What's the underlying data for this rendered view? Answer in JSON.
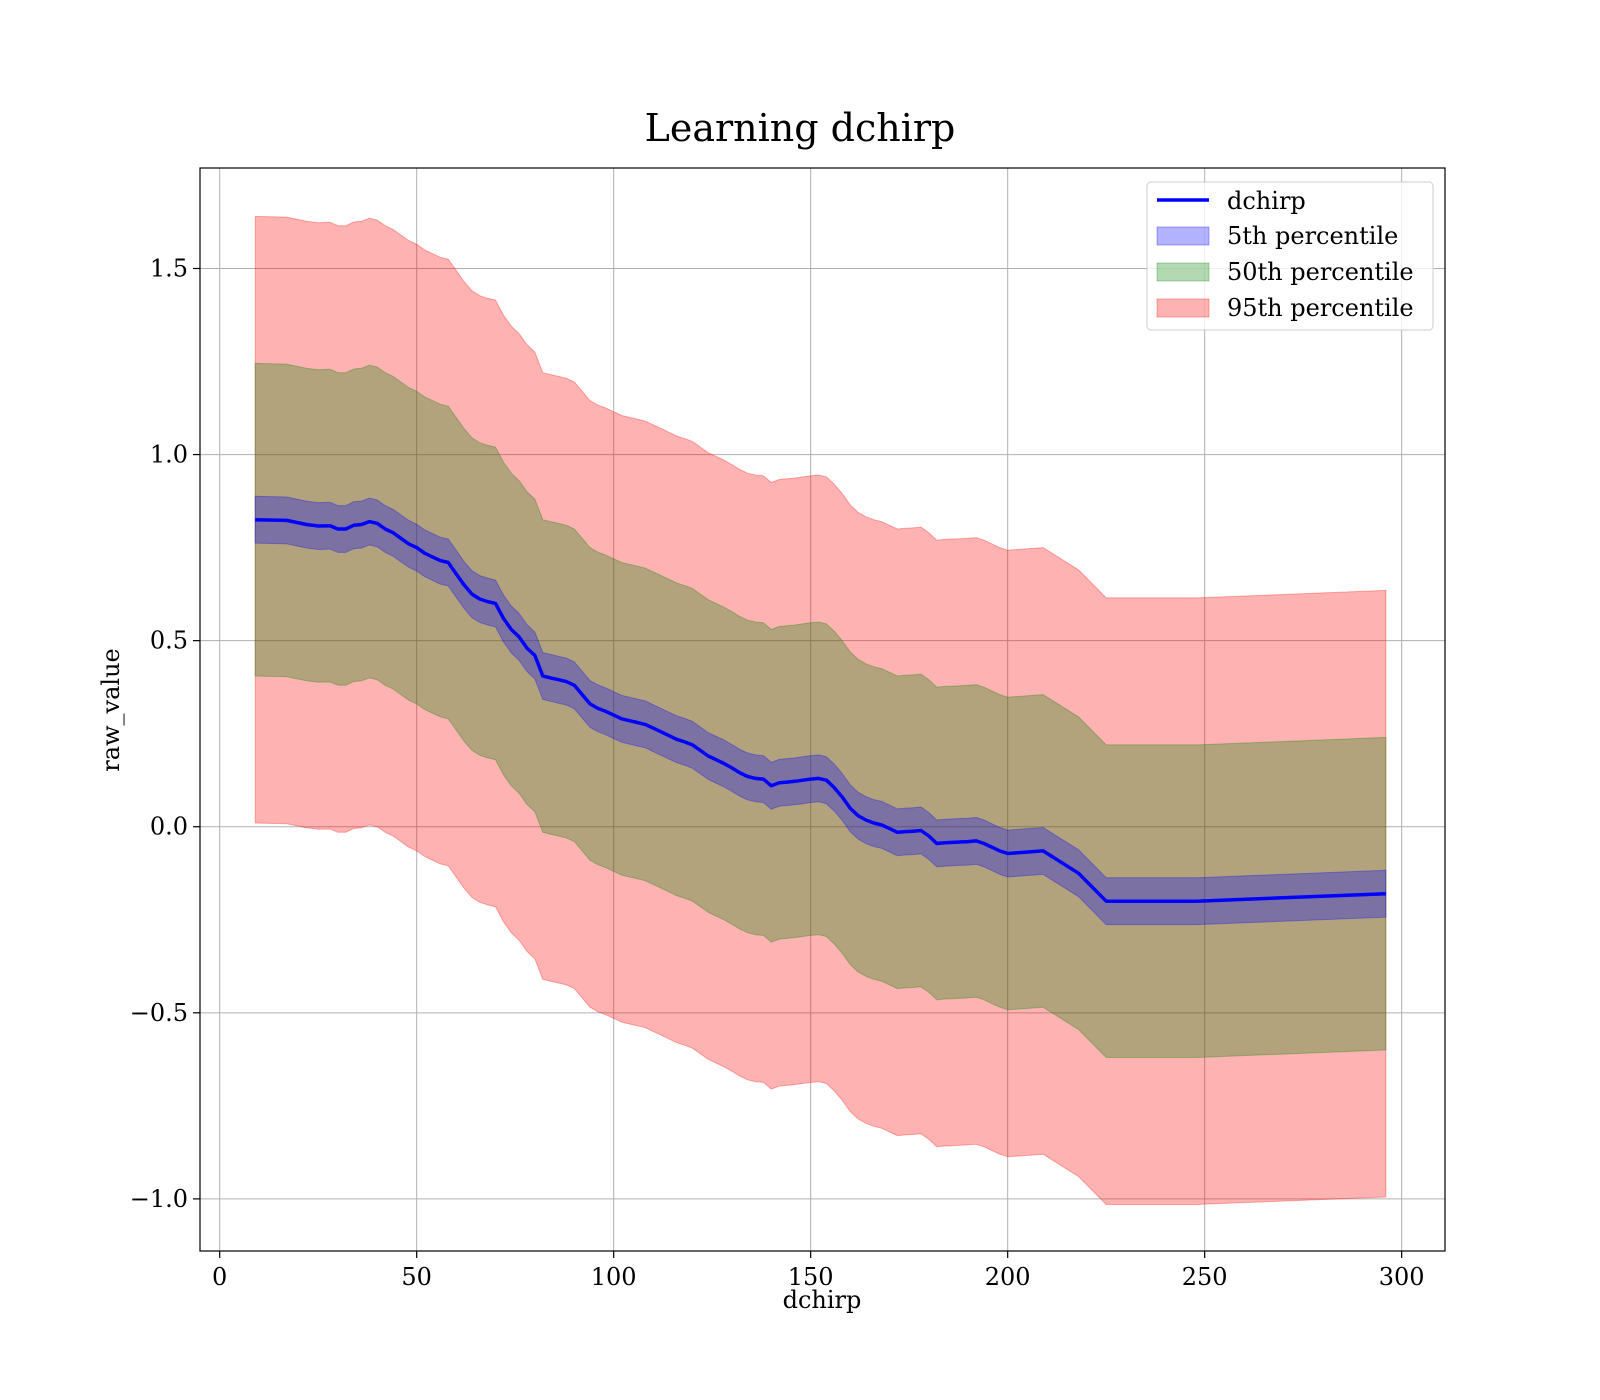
{
  "chart_data": {
    "type": "line",
    "title": "Learning dchirp",
    "xlabel": "dchirp",
    "ylabel": "raw_value",
    "xlim": [
      -5,
      311
    ],
    "ylim": [
      -1.14,
      1.77
    ],
    "grid": true,
    "legend_position": "top-right",
    "xticks": [
      0,
      50,
      100,
      150,
      200,
      250,
      300
    ],
    "xtick_labels": [
      "0",
      "50",
      "100",
      "150",
      "200",
      "250",
      "300"
    ],
    "yticks": [
      -1.0,
      -0.5,
      0.0,
      0.5,
      1.0,
      1.5
    ],
    "ytick_labels": [
      "−1.0",
      "−0.5",
      "0.0",
      "0.5",
      "1.0",
      "1.5"
    ],
    "x": [
      9,
      17,
      22,
      25,
      28,
      30,
      32,
      34,
      36,
      38,
      40,
      42,
      44,
      46,
      48,
      50,
      52,
      54,
      56,
      58,
      60,
      62,
      64,
      66,
      68,
      70,
      72,
      74,
      76,
      78,
      80,
      82,
      84,
      86,
      88,
      90,
      92,
      94,
      96,
      98,
      100,
      102,
      104,
      106,
      108,
      110,
      112,
      114,
      116,
      118,
      120,
      122,
      124,
      126,
      128,
      130,
      132,
      134,
      136,
      138,
      140,
      142,
      144,
      146,
      148,
      150,
      152,
      154,
      156,
      158,
      160,
      162,
      164,
      166,
      168,
      170,
      172,
      174,
      176,
      178,
      180,
      182,
      184,
      186,
      188,
      190,
      192,
      194,
      196,
      198,
      200,
      209,
      218,
      225,
      248,
      296
    ],
    "series": [
      {
        "name": "dchirp",
        "color": "#0000ff",
        "values": [
          0.825,
          0.823,
          0.812,
          0.808,
          0.809,
          0.8,
          0.8,
          0.81,
          0.812,
          0.82,
          0.815,
          0.8,
          0.79,
          0.775,
          0.76,
          0.75,
          0.735,
          0.725,
          0.715,
          0.71,
          0.68,
          0.65,
          0.625,
          0.612,
          0.605,
          0.6,
          0.56,
          0.53,
          0.51,
          0.48,
          0.46,
          0.405,
          0.4,
          0.395,
          0.39,
          0.38,
          0.355,
          0.33,
          0.318,
          0.31,
          0.3,
          0.29,
          0.285,
          0.28,
          0.275,
          0.265,
          0.255,
          0.245,
          0.235,
          0.228,
          0.22,
          0.205,
          0.19,
          0.18,
          0.17,
          0.158,
          0.145,
          0.135,
          0.13,
          0.128,
          0.11,
          0.118,
          0.12,
          0.122,
          0.125,
          0.128,
          0.13,
          0.125,
          0.105,
          0.08,
          0.05,
          0.03,
          0.018,
          0.01,
          0.005,
          -0.005,
          -0.015,
          -0.013,
          -0.012,
          -0.01,
          -0.025,
          -0.045,
          -0.043,
          -0.042,
          -0.041,
          -0.04,
          -0.038,
          -0.045,
          -0.055,
          -0.065,
          -0.072,
          -0.065,
          -0.125,
          -0.2,
          -0.2,
          -0.18
        ]
      },
      {
        "name": "5th percentile",
        "color": "#0000ff",
        "alpha": 0.3,
        "half_width": 0.063
      },
      {
        "name": "50th percentile",
        "color": "#008000",
        "alpha": 0.3,
        "half_width": 0.42
      },
      {
        "name": "95th percentile",
        "color": "#ff0000",
        "alpha": 0.3,
        "half_width": 0.815
      }
    ]
  }
}
